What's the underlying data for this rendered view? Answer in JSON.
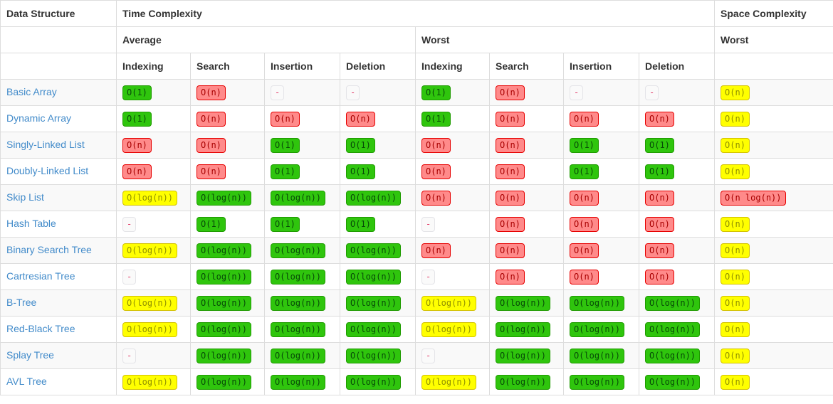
{
  "table": {
    "header": {
      "data_structure": "Data Structure",
      "time_complexity": "Time Complexity",
      "space_complexity": "Space Complexity",
      "average": "Average",
      "worst": "Worst",
      "space_worst": "Worst",
      "operations": [
        "Indexing",
        "Search",
        "Insertion",
        "Deletion"
      ]
    },
    "colors": {
      "link": "#428bca",
      "header_text": "#333333",
      "row_stripe": "#f9f9f9",
      "border": "#dddddd",
      "green_bg": "#2fc50d",
      "green_border": "#1f9b00",
      "green_text": "#074b07",
      "red_bg": "#ff8a8a",
      "red_border": "#e60000",
      "red_text": "#a80000",
      "yellow_bg": "#ffff00",
      "yellow_border": "#d3c200",
      "yellow_text": "#919100",
      "gray_bg": "#fafafa",
      "gray_border": "#e4e4e8",
      "gray_text": "#e23b69"
    },
    "rows": [
      {
        "name": "Basic Array",
        "average": [
          {
            "text": "O(1)",
            "level": "green"
          },
          {
            "text": "O(n)",
            "level": "red"
          },
          {
            "text": "-",
            "level": "gray"
          },
          {
            "text": "-",
            "level": "gray"
          }
        ],
        "worst": [
          {
            "text": "O(1)",
            "level": "green"
          },
          {
            "text": "O(n)",
            "level": "red"
          },
          {
            "text": "-",
            "level": "gray"
          },
          {
            "text": "-",
            "level": "gray"
          }
        ],
        "space": {
          "text": "O(n)",
          "level": "yellow"
        }
      },
      {
        "name": "Dynamic Array",
        "average": [
          {
            "text": "O(1)",
            "level": "green"
          },
          {
            "text": "O(n)",
            "level": "red"
          },
          {
            "text": "O(n)",
            "level": "red"
          },
          {
            "text": "O(n)",
            "level": "red"
          }
        ],
        "worst": [
          {
            "text": "O(1)",
            "level": "green"
          },
          {
            "text": "O(n)",
            "level": "red"
          },
          {
            "text": "O(n)",
            "level": "red"
          },
          {
            "text": "O(n)",
            "level": "red"
          }
        ],
        "space": {
          "text": "O(n)",
          "level": "yellow"
        }
      },
      {
        "name": "Singly-Linked List",
        "average": [
          {
            "text": "O(n)",
            "level": "red"
          },
          {
            "text": "O(n)",
            "level": "red"
          },
          {
            "text": "O(1)",
            "level": "green"
          },
          {
            "text": "O(1)",
            "level": "green"
          }
        ],
        "worst": [
          {
            "text": "O(n)",
            "level": "red"
          },
          {
            "text": "O(n)",
            "level": "red"
          },
          {
            "text": "O(1)",
            "level": "green"
          },
          {
            "text": "O(1)",
            "level": "green"
          }
        ],
        "space": {
          "text": "O(n)",
          "level": "yellow"
        }
      },
      {
        "name": "Doubly-Linked List",
        "average": [
          {
            "text": "O(n)",
            "level": "red"
          },
          {
            "text": "O(n)",
            "level": "red"
          },
          {
            "text": "O(1)",
            "level": "green"
          },
          {
            "text": "O(1)",
            "level": "green"
          }
        ],
        "worst": [
          {
            "text": "O(n)",
            "level": "red"
          },
          {
            "text": "O(n)",
            "level": "red"
          },
          {
            "text": "O(1)",
            "level": "green"
          },
          {
            "text": "O(1)",
            "level": "green"
          }
        ],
        "space": {
          "text": "O(n)",
          "level": "yellow"
        }
      },
      {
        "name": "Skip List",
        "average": [
          {
            "text": "O(log(n))",
            "level": "yellow"
          },
          {
            "text": "O(log(n))",
            "level": "green"
          },
          {
            "text": "O(log(n))",
            "level": "green"
          },
          {
            "text": "O(log(n))",
            "level": "green"
          }
        ],
        "worst": [
          {
            "text": "O(n)",
            "level": "red"
          },
          {
            "text": "O(n)",
            "level": "red"
          },
          {
            "text": "O(n)",
            "level": "red"
          },
          {
            "text": "O(n)",
            "level": "red"
          }
        ],
        "space": {
          "text": "O(n log(n))",
          "level": "red"
        }
      },
      {
        "name": "Hash Table",
        "average": [
          {
            "text": "-",
            "level": "gray"
          },
          {
            "text": "O(1)",
            "level": "green"
          },
          {
            "text": "O(1)",
            "level": "green"
          },
          {
            "text": "O(1)",
            "level": "green"
          }
        ],
        "worst": [
          {
            "text": "-",
            "level": "gray"
          },
          {
            "text": "O(n)",
            "level": "red"
          },
          {
            "text": "O(n)",
            "level": "red"
          },
          {
            "text": "O(n)",
            "level": "red"
          }
        ],
        "space": {
          "text": "O(n)",
          "level": "yellow"
        }
      },
      {
        "name": "Binary Search Tree",
        "average": [
          {
            "text": "O(log(n))",
            "level": "yellow"
          },
          {
            "text": "O(log(n))",
            "level": "green"
          },
          {
            "text": "O(log(n))",
            "level": "green"
          },
          {
            "text": "O(log(n))",
            "level": "green"
          }
        ],
        "worst": [
          {
            "text": "O(n)",
            "level": "red"
          },
          {
            "text": "O(n)",
            "level": "red"
          },
          {
            "text": "O(n)",
            "level": "red"
          },
          {
            "text": "O(n)",
            "level": "red"
          }
        ],
        "space": {
          "text": "O(n)",
          "level": "yellow"
        }
      },
      {
        "name": "Cartresian Tree",
        "average": [
          {
            "text": "-",
            "level": "gray"
          },
          {
            "text": "O(log(n))",
            "level": "green"
          },
          {
            "text": "O(log(n))",
            "level": "green"
          },
          {
            "text": "O(log(n))",
            "level": "green"
          }
        ],
        "worst": [
          {
            "text": "-",
            "level": "gray"
          },
          {
            "text": "O(n)",
            "level": "red"
          },
          {
            "text": "O(n)",
            "level": "red"
          },
          {
            "text": "O(n)",
            "level": "red"
          }
        ],
        "space": {
          "text": "O(n)",
          "level": "yellow"
        }
      },
      {
        "name": "B-Tree",
        "average": [
          {
            "text": "O(log(n))",
            "level": "yellow"
          },
          {
            "text": "O(log(n))",
            "level": "green"
          },
          {
            "text": "O(log(n))",
            "level": "green"
          },
          {
            "text": "O(log(n))",
            "level": "green"
          }
        ],
        "worst": [
          {
            "text": "O(log(n))",
            "level": "yellow"
          },
          {
            "text": "O(log(n))",
            "level": "green"
          },
          {
            "text": "O(log(n))",
            "level": "green"
          },
          {
            "text": "O(log(n))",
            "level": "green"
          }
        ],
        "space": {
          "text": "O(n)",
          "level": "yellow"
        }
      },
      {
        "name": "Red-Black Tree",
        "average": [
          {
            "text": "O(log(n))",
            "level": "yellow"
          },
          {
            "text": "O(log(n))",
            "level": "green"
          },
          {
            "text": "O(log(n))",
            "level": "green"
          },
          {
            "text": "O(log(n))",
            "level": "green"
          }
        ],
        "worst": [
          {
            "text": "O(log(n))",
            "level": "yellow"
          },
          {
            "text": "O(log(n))",
            "level": "green"
          },
          {
            "text": "O(log(n))",
            "level": "green"
          },
          {
            "text": "O(log(n))",
            "level": "green"
          }
        ],
        "space": {
          "text": "O(n)",
          "level": "yellow"
        }
      },
      {
        "name": "Splay Tree",
        "average": [
          {
            "text": "-",
            "level": "gray"
          },
          {
            "text": "O(log(n))",
            "level": "green"
          },
          {
            "text": "O(log(n))",
            "level": "green"
          },
          {
            "text": "O(log(n))",
            "level": "green"
          }
        ],
        "worst": [
          {
            "text": "-",
            "level": "gray"
          },
          {
            "text": "O(log(n))",
            "level": "green"
          },
          {
            "text": "O(log(n))",
            "level": "green"
          },
          {
            "text": "O(log(n))",
            "level": "green"
          }
        ],
        "space": {
          "text": "O(n)",
          "level": "yellow"
        }
      },
      {
        "name": "AVL Tree",
        "average": [
          {
            "text": "O(log(n))",
            "level": "yellow"
          },
          {
            "text": "O(log(n))",
            "level": "green"
          },
          {
            "text": "O(log(n))",
            "level": "green"
          },
          {
            "text": "O(log(n))",
            "level": "green"
          }
        ],
        "worst": [
          {
            "text": "O(log(n))",
            "level": "yellow"
          },
          {
            "text": "O(log(n))",
            "level": "green"
          },
          {
            "text": "O(log(n))",
            "level": "green"
          },
          {
            "text": "O(log(n))",
            "level": "green"
          }
        ],
        "space": {
          "text": "O(n)",
          "level": "yellow"
        }
      }
    ]
  }
}
